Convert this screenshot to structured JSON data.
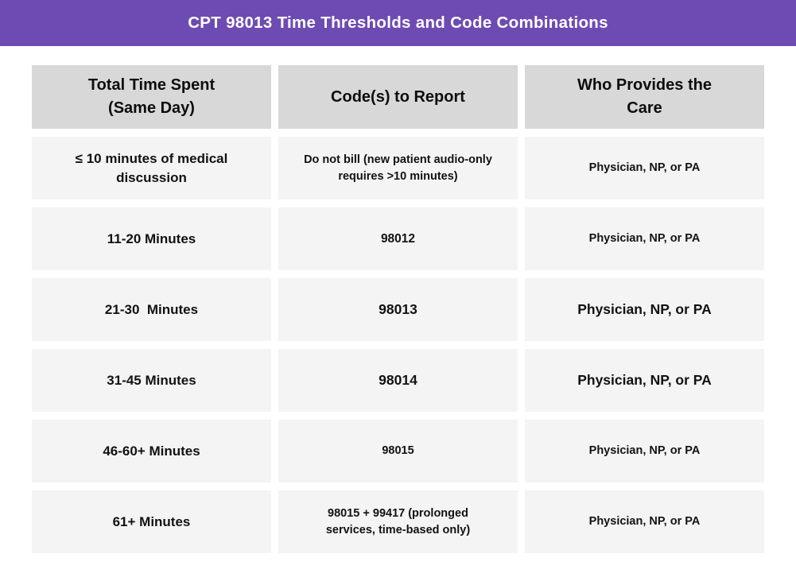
{
  "title_bar": {
    "title": "CPT 98013 Time Thresholds and Code Combinations"
  },
  "table": {
    "headers": [
      "Total Time Spent\n(Same Day)",
      "Code(s) to Report",
      "Who Provides the\nCare"
    ],
    "rows": [
      {
        "time": "≤ 10 minutes of medical\ndiscussion",
        "code": "Do not bill (new patient audio-only\nrequires >10 minutes)",
        "provider": "Physician, NP, or PA"
      },
      {
        "time": "11-20 Minutes",
        "code": "98012",
        "provider": "Physician, NP, or PA"
      },
      {
        "time": "21-30  Minutes",
        "code": "98013",
        "provider": "Physician, NP, or PA"
      },
      {
        "time": "31-45 Minutes",
        "code": "98014",
        "provider": "Physician, NP, or PA"
      },
      {
        "time": "46-60+ Minutes",
        "code": "98015",
        "provider": "Physician, NP, or PA"
      },
      {
        "time": "61+ Minutes",
        "code": "98015 + 99417 (prolonged\nservices, time-based only)",
        "provider": "Physician, NP, or PA"
      }
    ]
  },
  "colors": {
    "accent": "#6E4BB2",
    "title_text": "#FFFFFF",
    "header_cell_bg": "#D8D8D8",
    "body_cell_bg": "#F4F4F4",
    "text": "#121212"
  },
  "chart_data": {
    "type": "table",
    "title": "CPT 98013 Time Thresholds and Code Combinations",
    "columns": [
      "Total Time Spent (Same Day)",
      "Code(s) to Report",
      "Who Provides the Care"
    ],
    "rows": [
      [
        "≤ 10 minutes of medical discussion",
        "Do not bill (new patient audio-only requires >10 minutes)",
        "Physician, NP, or PA"
      ],
      [
        "11-20 Minutes",
        "98012",
        "Physician, NP, or PA"
      ],
      [
        "21-30 Minutes",
        "98013",
        "Physician, NP, or PA"
      ],
      [
        "31-45 Minutes",
        "98014",
        "Physician, NP, or PA"
      ],
      [
        "46-60+ Minutes",
        "98015",
        "Physician, NP, or PA"
      ],
      [
        "61+ Minutes",
        "98015 + 99417 (prolonged services, time-based only)",
        "Physician, NP, or PA"
      ]
    ],
    "layout": {
      "header_position": "top",
      "grid": false,
      "cell_style": "card-blocks"
    }
  }
}
